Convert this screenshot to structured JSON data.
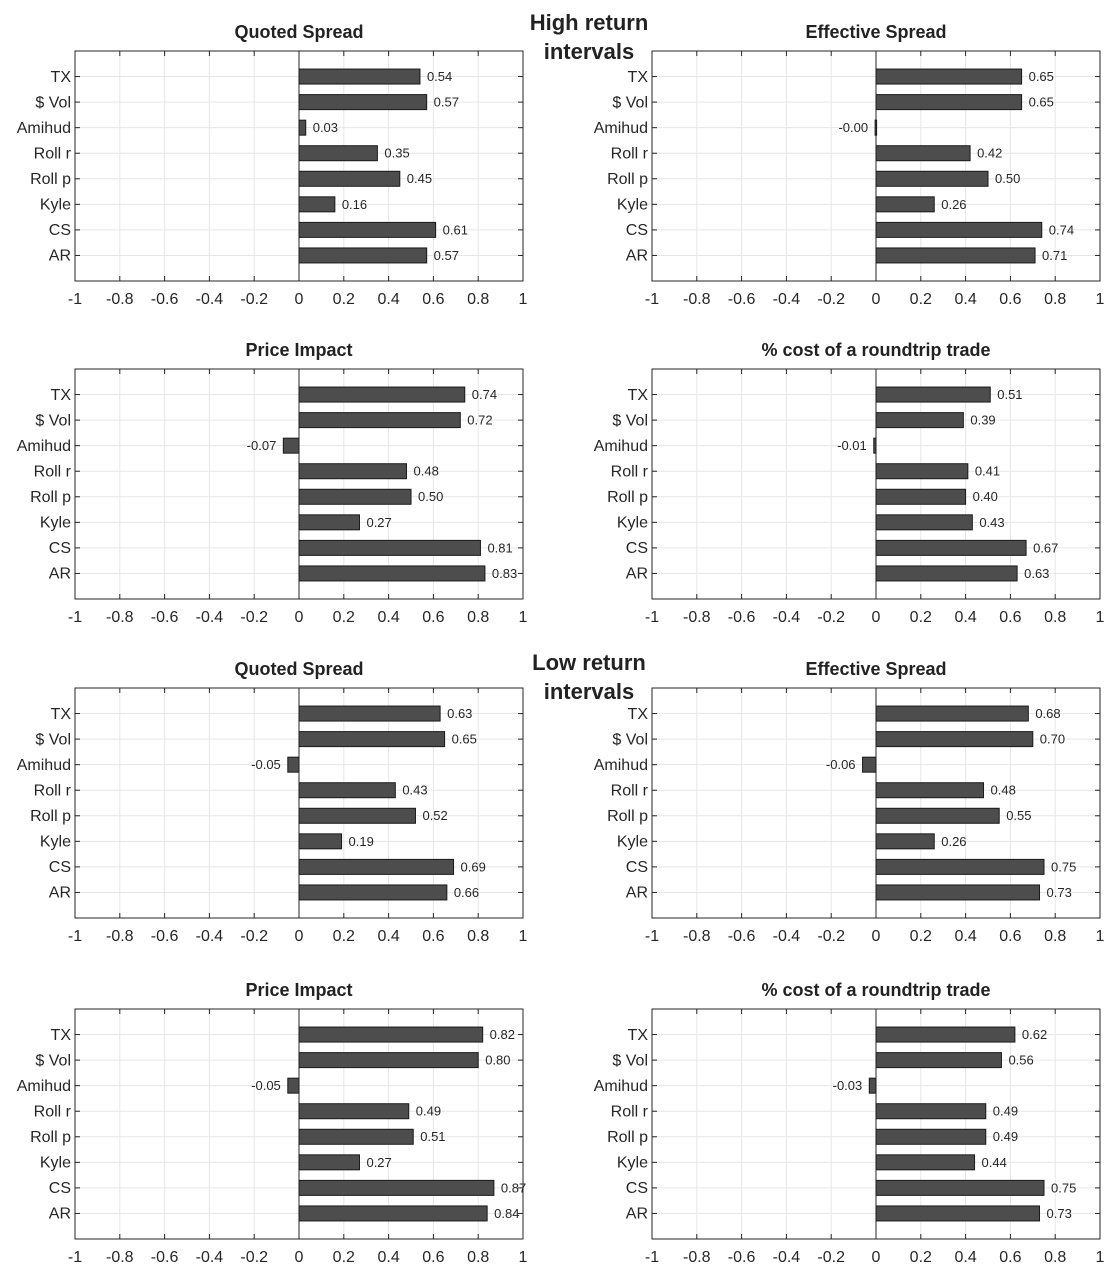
{
  "groups": [
    {
      "line1": "High return",
      "line2": "intervals"
    },
    {
      "line1": "Low return",
      "line2": "intervals"
    }
  ],
  "colors": {
    "bar_fill": "#4d4d4d",
    "bar_edge": "#1a1a1a",
    "grid": "#e6e6e6",
    "axis": "#262626",
    "text": "#262626"
  },
  "chart_data": [
    {
      "type": "bar",
      "orientation": "horizontal",
      "title": "Quoted Spread",
      "categories": [
        "TX",
        "$ Vol",
        "Amihud",
        "Roll r",
        "Roll p",
        "Kyle",
        "CS",
        "AR"
      ],
      "values": [
        0.54,
        0.57,
        0.03,
        0.35,
        0.45,
        0.16,
        0.61,
        0.57
      ],
      "labels": [
        "0.54",
        "0.57",
        "0.03",
        "0.35",
        "0.45",
        "0.16",
        "0.61",
        "0.57"
      ],
      "xlim": [
        -1,
        1
      ],
      "xticks": [
        "-1",
        "-0.8",
        "-0.6",
        "-0.4",
        "-0.2",
        "0",
        "0.2",
        "0.4",
        "0.6",
        "0.8",
        "1"
      ],
      "grid": true
    },
    {
      "type": "bar",
      "orientation": "horizontal",
      "title": "Effective Spread",
      "categories": [
        "TX",
        "$ Vol",
        "Amihud",
        "Roll r",
        "Roll p",
        "Kyle",
        "CS",
        "AR"
      ],
      "values": [
        0.65,
        0.65,
        -0.004,
        0.42,
        0.5,
        0.26,
        0.74,
        0.71
      ],
      "labels": [
        "0.65",
        "0.65",
        "-0.00",
        "0.42",
        "0.50",
        "0.26",
        "0.74",
        "0.71"
      ],
      "xlim": [
        -1,
        1
      ],
      "xticks": [
        "-1",
        "-0.8",
        "-0.6",
        "-0.4",
        "-0.2",
        "0",
        "0.2",
        "0.4",
        "0.6",
        "0.8",
        "1"
      ],
      "grid": true
    },
    {
      "type": "bar",
      "orientation": "horizontal",
      "title": "Price Impact",
      "categories": [
        "TX",
        "$ Vol",
        "Amihud",
        "Roll r",
        "Roll p",
        "Kyle",
        "CS",
        "AR"
      ],
      "values": [
        0.74,
        0.72,
        -0.07,
        0.48,
        0.5,
        0.27,
        0.81,
        0.83
      ],
      "labels": [
        "0.74",
        "0.72",
        "-0.07",
        "0.48",
        "0.50",
        "0.27",
        "0.81",
        "0.83"
      ],
      "xlim": [
        -1,
        1
      ],
      "xticks": [
        "-1",
        "-0.8",
        "-0.6",
        "-0.4",
        "-0.2",
        "0",
        "0.2",
        "0.4",
        "0.6",
        "0.8",
        "1"
      ],
      "grid": true
    },
    {
      "type": "bar",
      "orientation": "horizontal",
      "title": "% cost of a roundtrip trade",
      "categories": [
        "TX",
        "$ Vol",
        "Amihud",
        "Roll r",
        "Roll p",
        "Kyle",
        "CS",
        "AR"
      ],
      "values": [
        0.51,
        0.39,
        -0.01,
        0.41,
        0.4,
        0.43,
        0.67,
        0.63
      ],
      "labels": [
        "0.51",
        "0.39",
        "-0.01",
        "0.41",
        "0.40",
        "0.43",
        "0.67",
        "0.63"
      ],
      "xlim": [
        -1,
        1
      ],
      "xticks": [
        "-1",
        "-0.8",
        "-0.6",
        "-0.4",
        "-0.2",
        "0",
        "0.2",
        "0.4",
        "0.6",
        "0.8",
        "1"
      ],
      "grid": true
    },
    {
      "type": "bar",
      "orientation": "horizontal",
      "title": "Quoted Spread",
      "categories": [
        "TX",
        "$ Vol",
        "Amihud",
        "Roll r",
        "Roll p",
        "Kyle",
        "CS",
        "AR"
      ],
      "values": [
        0.63,
        0.65,
        -0.05,
        0.43,
        0.52,
        0.19,
        0.69,
        0.66
      ],
      "labels": [
        "0.63",
        "0.65",
        "-0.05",
        "0.43",
        "0.52",
        "0.19",
        "0.69",
        "0.66"
      ],
      "xlim": [
        -1,
        1
      ],
      "xticks": [
        "-1",
        "-0.8",
        "-0.6",
        "-0.4",
        "-0.2",
        "0",
        "0.2",
        "0.4",
        "0.6",
        "0.8",
        "1"
      ],
      "grid": true
    },
    {
      "type": "bar",
      "orientation": "horizontal",
      "title": "Effective Spread",
      "categories": [
        "TX",
        "$ Vol",
        "Amihud",
        "Roll r",
        "Roll p",
        "Kyle",
        "CS",
        "AR"
      ],
      "values": [
        0.68,
        0.7,
        -0.06,
        0.48,
        0.55,
        0.26,
        0.75,
        0.73
      ],
      "labels": [
        "0.68",
        "0.70",
        "-0.06",
        "0.48",
        "0.55",
        "0.26",
        "0.75",
        "0.73"
      ],
      "xlim": [
        -1,
        1
      ],
      "xticks": [
        "-1",
        "-0.8",
        "-0.6",
        "-0.4",
        "-0.2",
        "0",
        "0.2",
        "0.4",
        "0.6",
        "0.8",
        "1"
      ],
      "grid": true
    },
    {
      "type": "bar",
      "orientation": "horizontal",
      "title": "Price Impact",
      "categories": [
        "TX",
        "$ Vol",
        "Amihud",
        "Roll r",
        "Roll p",
        "Kyle",
        "CS",
        "AR"
      ],
      "values": [
        0.82,
        0.8,
        -0.05,
        0.49,
        0.51,
        0.27,
        0.87,
        0.84
      ],
      "labels": [
        "0.82",
        "0.80",
        "-0.05",
        "0.49",
        "0.51",
        "0.27",
        "0.87",
        "0.84"
      ],
      "xlim": [
        -1,
        1
      ],
      "xticks": [
        "-1",
        "-0.8",
        "-0.6",
        "-0.4",
        "-0.2",
        "0",
        "0.2",
        "0.4",
        "0.6",
        "0.8",
        "1"
      ],
      "grid": true
    },
    {
      "type": "bar",
      "orientation": "horizontal",
      "title": "% cost of a roundtrip trade",
      "categories": [
        "TX",
        "$ Vol",
        "Amihud",
        "Roll r",
        "Roll p",
        "Kyle",
        "CS",
        "AR"
      ],
      "values": [
        0.62,
        0.56,
        -0.03,
        0.49,
        0.49,
        0.44,
        0.75,
        0.73
      ],
      "labels": [
        "0.62",
        "0.56",
        "-0.03",
        "0.49",
        "0.49",
        "0.44",
        "0.75",
        "0.73"
      ],
      "xlim": [
        -1,
        1
      ],
      "xticks": [
        "-1",
        "-0.8",
        "-0.6",
        "-0.4",
        "-0.2",
        "0",
        "0.2",
        "0.4",
        "0.6",
        "0.8",
        "1"
      ],
      "grid": true
    }
  ]
}
